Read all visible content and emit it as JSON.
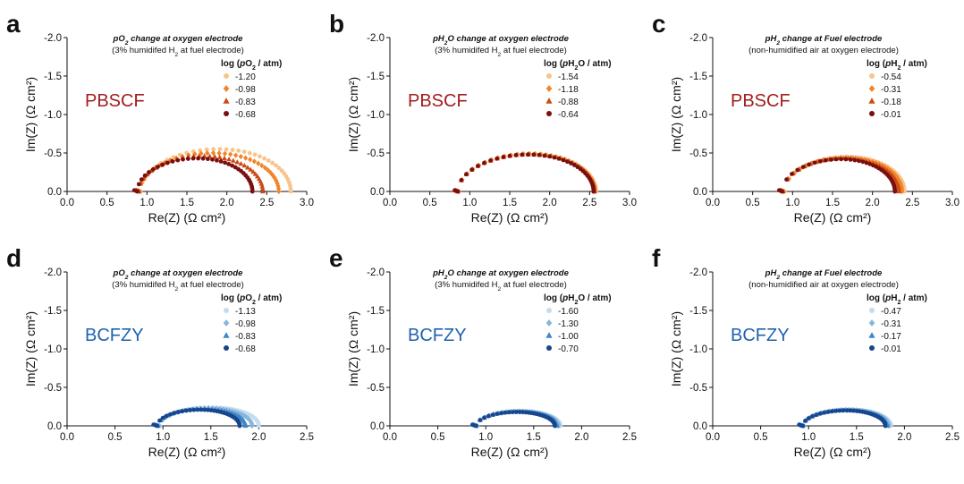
{
  "chart_data": [
    {
      "panel": "a",
      "type": "scatter",
      "title": "pO2 change at oxygen electrode",
      "subtitle": "(3% humidifed H2 at fuel electrode)",
      "material": "PBSCF",
      "material_color": "#a31d1d",
      "xlabel": "Re(Z) (Ω cm²)",
      "ylabel": "Im(Z) (Ω cm²)",
      "xlim": [
        0,
        3.0
      ],
      "ylim": [
        0,
        -2.0
      ],
      "xticks": [
        "0.0",
        "0.5",
        "1.0",
        "1.5",
        "2.0",
        "2.5",
        "3.0"
      ],
      "yticks": [
        "0.0",
        "-0.5",
        "-1.0",
        "-1.5",
        "-2.0"
      ],
      "legend_title": "log (pO2 / atm)",
      "series": [
        {
          "name": "-1.20",
          "marker": "circle",
          "color": "#f8c48e",
          "arc": {
            "rs": 0.92,
            "re": 2.8,
            "peak": -0.55,
            "skew": 1.35
          }
        },
        {
          "name": "-0.98",
          "marker": "diamond",
          "color": "#f0852a",
          "arc": {
            "rs": 0.91,
            "re": 2.65,
            "peak": -0.5,
            "skew": 1.35
          }
        },
        {
          "name": "-0.83",
          "marker": "triangle",
          "color": "#cc4a14",
          "arc": {
            "rs": 0.9,
            "re": 2.45,
            "peak": -0.46,
            "skew": 1.35
          }
        },
        {
          "name": "-0.68",
          "marker": "circle",
          "color": "#7a0f0f",
          "arc": {
            "rs": 0.88,
            "re": 2.32,
            "peak": -0.43,
            "skew": 1.35
          }
        }
      ]
    },
    {
      "panel": "b",
      "type": "scatter",
      "title": "pH2O change at oxygen electrode",
      "subtitle": "(3% humidifed H2 at fuel electrode)",
      "material": "PBSCF",
      "material_color": "#a31d1d",
      "xlabel": "Re(Z) (Ω cm²)",
      "ylabel": "Im(Z) (Ω cm²)",
      "xlim": [
        0,
        3.0
      ],
      "ylim": [
        0,
        -2.0
      ],
      "xticks": [
        "0.0",
        "0.5",
        "1.0",
        "1.5",
        "2.0",
        "2.5",
        "3.0"
      ],
      "yticks": [
        "0.0",
        "-0.5",
        "-1.0",
        "-1.5",
        "-2.0"
      ],
      "legend_title": "log (pH2O / atm)",
      "series": [
        {
          "name": "-1.54",
          "marker": "circle",
          "color": "#f8c48e",
          "arc": {
            "rs": 0.86,
            "re": 2.58,
            "peak": -0.49,
            "skew": 1.55
          }
        },
        {
          "name": "-1.18",
          "marker": "diamond",
          "color": "#f0852a",
          "arc": {
            "rs": 0.86,
            "re": 2.57,
            "peak": -0.49,
            "skew": 1.55
          }
        },
        {
          "name": "-0.88",
          "marker": "triangle",
          "color": "#cc4a14",
          "arc": {
            "rs": 0.85,
            "re": 2.56,
            "peak": -0.48,
            "skew": 1.55
          }
        },
        {
          "name": "-0.64",
          "marker": "circle",
          "color": "#7a0f0f",
          "arc": {
            "rs": 0.85,
            "re": 2.55,
            "peak": -0.48,
            "skew": 1.55
          }
        }
      ]
    },
    {
      "panel": "c",
      "type": "scatter",
      "title": "pH2 change at Fuel electrode",
      "subtitle": "(non-humidified air at oxygen electrode)",
      "material": "PBSCF",
      "material_color": "#a31d1d",
      "xlabel": "Re(Z) (Ω cm²)",
      "ylabel": "Im(Z) (Ω cm²)",
      "xlim": [
        0,
        3.0
      ],
      "ylim": [
        0,
        -2.0
      ],
      "xticks": [
        "0.0",
        "0.5",
        "1.0",
        "1.5",
        "2.0",
        "2.5",
        "3.0"
      ],
      "yticks": [
        "0.0",
        "-0.5",
        "-1.0",
        "-1.5",
        "-2.0"
      ],
      "legend_title": "log (pH2 / atm)",
      "series": [
        {
          "name": "-0.54",
          "marker": "circle",
          "color": "#f8c48e",
          "arc": {
            "rs": 0.9,
            "re": 2.4,
            "peak": -0.45,
            "skew": 1.7
          }
        },
        {
          "name": "-0.31",
          "marker": "diamond",
          "color": "#f0852a",
          "arc": {
            "rs": 0.89,
            "re": 2.37,
            "peak": -0.44,
            "skew": 1.7
          }
        },
        {
          "name": "-0.18",
          "marker": "triangle",
          "color": "#cc4a14",
          "arc": {
            "rs": 0.88,
            "re": 2.33,
            "peak": -0.43,
            "skew": 1.7
          }
        },
        {
          "name": "-0.01",
          "marker": "circle",
          "color": "#7a0f0f",
          "arc": {
            "rs": 0.87,
            "re": 2.28,
            "peak": -0.42,
            "skew": 1.7
          }
        }
      ]
    },
    {
      "panel": "d",
      "type": "scatter",
      "title": "pO2 change at oxygen electrode",
      "subtitle": "(3% humidifed H2 at fuel electrode)",
      "material": "BCFZY",
      "material_color": "#1f62b0",
      "xlabel": "Re(Z) (Ω cm²)",
      "ylabel": "Im(Z) (Ω cm²)",
      "xlim": [
        0,
        2.5
      ],
      "ylim": [
        0,
        -2.0
      ],
      "xticks": [
        "0.0",
        "0.5",
        "1.0",
        "1.5",
        "2.0",
        "2.5"
      ],
      "yticks": [
        "0.0",
        "-0.5",
        "-1.0",
        "-1.5",
        "-2.0"
      ],
      "legend_title": "log (pO2 / atm)",
      "series": [
        {
          "name": "-1.13",
          "marker": "circle",
          "color": "#c5dcef",
          "arc": {
            "rs": 0.97,
            "re": 2.0,
            "peak": -0.24,
            "skew": 1.6
          }
        },
        {
          "name": "-0.98",
          "marker": "diamond",
          "color": "#86b6dd",
          "arc": {
            "rs": 0.96,
            "re": 1.93,
            "peak": -0.23,
            "skew": 1.6
          }
        },
        {
          "name": "-0.83",
          "marker": "triangle",
          "color": "#3f86c6",
          "arc": {
            "rs": 0.95,
            "re": 1.86,
            "peak": -0.22,
            "skew": 1.6
          }
        },
        {
          "name": "-0.68",
          "marker": "circle",
          "color": "#17468e",
          "arc": {
            "rs": 0.94,
            "re": 1.8,
            "peak": -0.21,
            "skew": 1.6
          }
        }
      ]
    },
    {
      "panel": "e",
      "type": "scatter",
      "title": "pH2O change at oxygen electrode",
      "subtitle": "(3% humidifed H2 at fuel electrode)",
      "material": "BCFZY",
      "material_color": "#1f62b0",
      "xlabel": "Re(Z) (Ω cm²)",
      "ylabel": "Im(Z) (Ω cm²)",
      "xlim": [
        0,
        2.5
      ],
      "ylim": [
        0,
        -2.0
      ],
      "xticks": [
        "0.0",
        "0.5",
        "1.0",
        "1.5",
        "2.0",
        "2.5"
      ],
      "yticks": [
        "0.0",
        "-0.5",
        "-1.0",
        "-1.5",
        "-2.0"
      ],
      "legend_title": "log (pH2O / atm)",
      "series": [
        {
          "name": "-1.60",
          "marker": "circle",
          "color": "#c5dcef",
          "arc": {
            "rs": 0.91,
            "re": 1.78,
            "peak": -0.19,
            "skew": 1.8
          }
        },
        {
          "name": "-1.30",
          "marker": "diamond",
          "color": "#86b6dd",
          "arc": {
            "rs": 0.91,
            "re": 1.76,
            "peak": -0.19,
            "skew": 1.8
          }
        },
        {
          "name": "-1.00",
          "marker": "triangle",
          "color": "#3f86c6",
          "arc": {
            "rs": 0.9,
            "re": 1.74,
            "peak": -0.185,
            "skew": 1.8
          }
        },
        {
          "name": "-0.70",
          "marker": "circle",
          "color": "#17468e",
          "arc": {
            "rs": 0.9,
            "re": 1.72,
            "peak": -0.18,
            "skew": 1.8
          }
        }
      ]
    },
    {
      "panel": "f",
      "type": "scatter",
      "title": "pH2 change at Fuel electrode",
      "subtitle": "(non-humidified air at oxygen electrode)",
      "material": "BCFZY",
      "material_color": "#1f62b0",
      "xlabel": "Re(Z) (Ω cm²)",
      "ylabel": "Im(Z) (Ω cm²)",
      "xlim": [
        0,
        2.5
      ],
      "ylim": [
        0,
        -2.0
      ],
      "xticks": [
        "0.0",
        "0.5",
        "1.0",
        "1.5",
        "2.0",
        "2.5"
      ],
      "yticks": [
        "0.0",
        "-0.5",
        "-1.0",
        "-1.5",
        "-2.0"
      ],
      "legend_title": "log (pH2 / atm)",
      "series": [
        {
          "name": "-0.47",
          "marker": "circle",
          "color": "#c5dcef",
          "arc": {
            "rs": 0.95,
            "re": 1.86,
            "peak": -0.21,
            "skew": 1.6
          }
        },
        {
          "name": "-0.31",
          "marker": "diamond",
          "color": "#86b6dd",
          "arc": {
            "rs": 0.95,
            "re": 1.84,
            "peak": -0.21,
            "skew": 1.6
          }
        },
        {
          "name": "-0.17",
          "marker": "triangle",
          "color": "#3f86c6",
          "arc": {
            "rs": 0.94,
            "re": 1.82,
            "peak": -0.205,
            "skew": 1.6
          }
        },
        {
          "name": "-0.01",
          "marker": "circle",
          "color": "#17468e",
          "arc": {
            "rs": 0.94,
            "re": 1.8,
            "peak": -0.2,
            "skew": 1.6
          }
        }
      ]
    }
  ]
}
